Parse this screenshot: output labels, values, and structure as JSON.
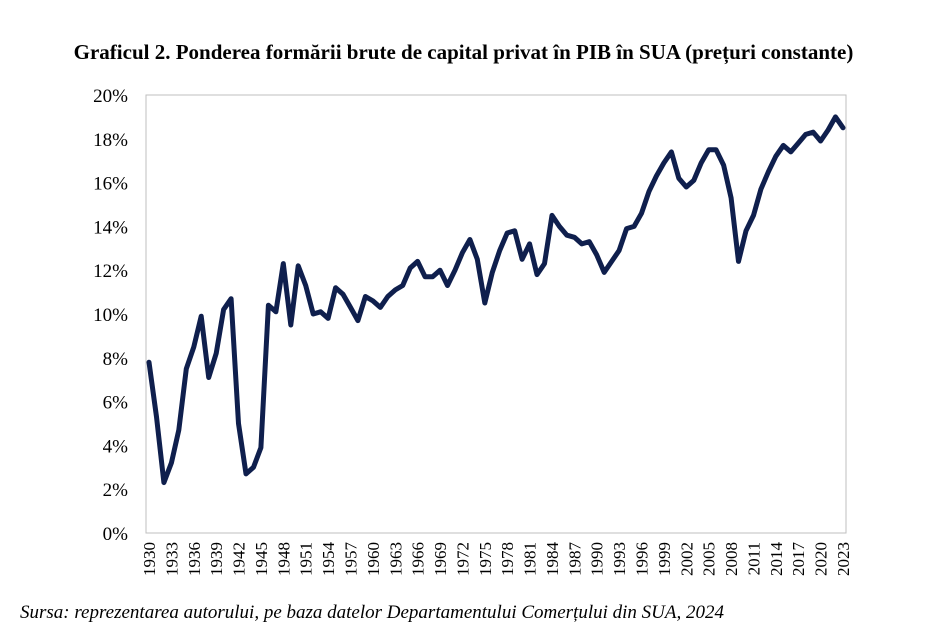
{
  "title": "Graficul 2. Ponderea formării brute de capital privat în PIB în SUA (prețuri constante)",
  "source": "Sursa: reprezentarea autorului, pe baza datelor Departamentului Comerțului din SUA, 2024",
  "chart_data": {
    "type": "line",
    "title": "Graficul 2. Ponderea formării brute de capital privat în PIB în SUA (prețuri constante)",
    "xlabel": "",
    "ylabel": "",
    "ylim": [
      0,
      20
    ],
    "xlim": [
      1930,
      2023
    ],
    "grid": false,
    "legend": "none",
    "line_color": "#0f1f4d",
    "y_ticks": [
      "0%",
      "2%",
      "4%",
      "6%",
      "8%",
      "10%",
      "12%",
      "14%",
      "16%",
      "18%",
      "20%"
    ],
    "x_ticks": [
      "1930",
      "1933",
      "1936",
      "1939",
      "1942",
      "1945",
      "1948",
      "1951",
      "1954",
      "1957",
      "1960",
      "1963",
      "1966",
      "1969",
      "1972",
      "1975",
      "1978",
      "1981",
      "1984",
      "1987",
      "1990",
      "1993",
      "1996",
      "1999",
      "2002",
      "2005",
      "2008",
      "2011",
      "2014",
      "2017",
      "2020",
      "2023"
    ],
    "series": [
      {
        "x": [
          1930,
          1931,
          1932,
          1933,
          1934,
          1935,
          1936,
          1937,
          1938,
          1939,
          1940,
          1941,
          1942,
          1943,
          1944,
          1945,
          1946,
          1947,
          1948,
          1949,
          1950,
          1951,
          1952,
          1953,
          1954,
          1955,
          1956,
          1957,
          1958,
          1959,
          1960,
          1961,
          1962,
          1963,
          1964,
          1965,
          1966,
          1967,
          1968,
          1969,
          1970,
          1971,
          1972,
          1973,
          1974,
          1975,
          1976,
          1977,
          1978,
          1979,
          1980,
          1981,
          1982,
          1983,
          1984,
          1985,
          1986,
          1987,
          1988,
          1989,
          1990,
          1991,
          1992,
          1993,
          1994,
          1995,
          1996,
          1997,
          1998,
          1999,
          2000,
          2001,
          2002,
          2003,
          2004,
          2005,
          2006,
          2007,
          2008,
          2009,
          2010,
          2011,
          2012,
          2013,
          2014,
          2015,
          2016,
          2017,
          2018,
          2019,
          2020,
          2021,
          2022,
          2023
        ],
        "values": [
          7.8,
          5.3,
          2.3,
          3.2,
          4.7,
          7.5,
          8.5,
          9.9,
          7.1,
          8.2,
          10.2,
          10.7,
          5.0,
          2.7,
          3.0,
          3.9,
          10.4,
          10.1,
          12.3,
          9.5,
          12.2,
          11.3,
          10.0,
          10.1,
          9.8,
          11.2,
          10.9,
          10.3,
          9.7,
          10.8,
          10.6,
          10.3,
          10.8,
          11.1,
          11.3,
          12.1,
          12.4,
          11.7,
          11.7,
          12.0,
          11.3,
          12.0,
          12.8,
          13.4,
          12.5,
          10.5,
          11.9,
          12.9,
          13.7,
          13.8,
          12.5,
          13.2,
          11.8,
          12.3,
          14.5,
          14.0,
          13.6,
          13.5,
          13.2,
          13.3,
          12.7,
          11.9,
          12.4,
          12.9,
          13.9,
          14.0,
          14.6,
          15.6,
          16.3,
          16.9,
          17.4,
          16.2,
          15.8,
          16.1,
          16.9,
          17.5,
          17.5,
          16.8,
          15.3,
          12.4,
          13.8,
          14.5,
          15.7,
          16.5,
          17.2,
          17.7,
          17.4,
          17.8,
          18.2,
          18.3,
          17.9,
          18.4,
          19.0,
          18.5
        ]
      }
    ]
  }
}
